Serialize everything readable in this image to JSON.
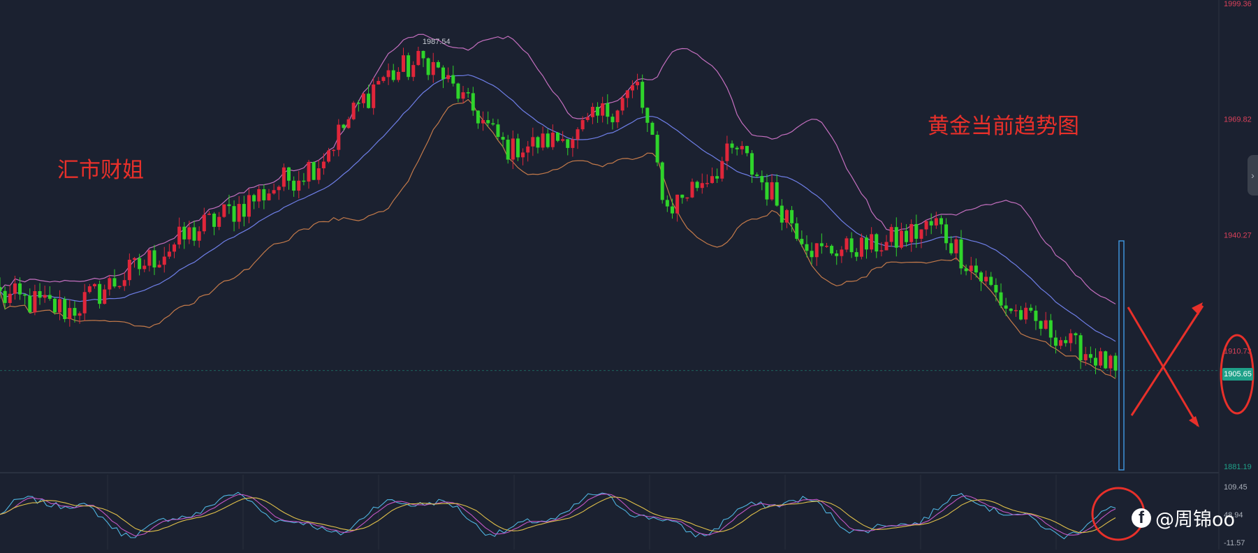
{
  "annotations": {
    "left_label": "汇市财姐",
    "right_label": "黄金当前趋势图",
    "peak_label": "1987.54",
    "watermark": "@周锦oo",
    "watermark_icon": "facebook-icon"
  },
  "colors": {
    "background": "#1b2130",
    "bull": "#e0263a",
    "bear": "#2fd42b",
    "bb_upper": "#c46fbf",
    "bb_middle": "#6f7fe8",
    "bb_lower": "#c47a4a",
    "annotation": "#e8302a",
    "highlight_box": "#3e93d9"
  },
  "chart_data": [
    {
      "type": "candlestick",
      "title": "",
      "current_price": "1905.65",
      "y_ticks": [
        "1999.36",
        "1969.82",
        "1940.27",
        "1910.73",
        "1881.19"
      ],
      "ylim": [
        1881.19,
        1999.36
      ],
      "indicators": [
        "Bollinger upper",
        "Bollinger middle",
        "Bollinger lower"
      ],
      "segments": [
        {
          "n": 15,
          "from": 1925,
          "to": 1921,
          "vol": 4
        },
        {
          "n": 25,
          "from": 1921,
          "to": 1941,
          "vol": 4
        },
        {
          "n": 25,
          "from": 1941,
          "to": 1959,
          "vol": 4
        },
        {
          "n": 12,
          "from": 1959,
          "to": 1980,
          "vol": 4
        },
        {
          "n": 10,
          "from": 1980,
          "to": 1985,
          "vol": 4
        },
        {
          "n": 16,
          "from": 1985,
          "to": 1962,
          "vol": 3
        },
        {
          "n": 14,
          "from": 1962,
          "to": 1966,
          "vol": 3
        },
        {
          "n": 12,
          "from": 1966,
          "to": 1978,
          "vol": 4
        },
        {
          "n": 6,
          "from": 1978,
          "to": 1947,
          "vol": 4
        },
        {
          "n": 14,
          "from": 1947,
          "to": 1962,
          "vol": 4
        },
        {
          "n": 16,
          "from": 1962,
          "to": 1936,
          "vol": 4
        },
        {
          "n": 14,
          "from": 1936,
          "to": 1938,
          "vol": 3
        },
        {
          "n": 10,
          "from": 1938,
          "to": 1943,
          "vol": 4
        },
        {
          "n": 14,
          "from": 1943,
          "to": 1922,
          "vol": 4
        },
        {
          "n": 22,
          "from": 1922,
          "to": 1906,
          "vol": 3
        }
      ]
    },
    {
      "type": "line",
      "title": "",
      "y_ticks": [
        "109.45",
        "48.94",
        "-11.57"
      ],
      "ylim": [
        -11.57,
        109.45
      ],
      "series": [
        {
          "color": "#4fb4e0"
        },
        {
          "color": "#c457c6"
        },
        {
          "color": "#e0c04a"
        }
      ]
    }
  ]
}
